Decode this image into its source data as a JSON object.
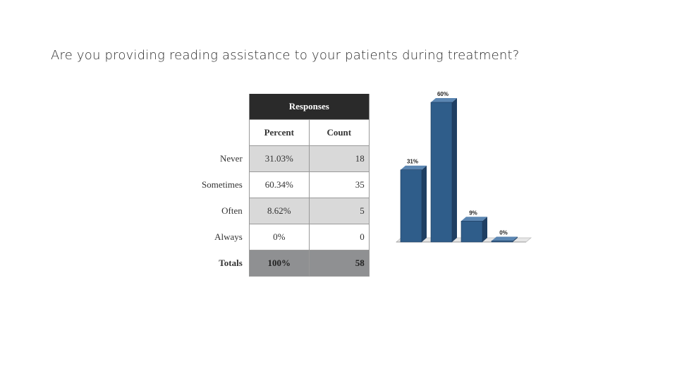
{
  "slide": {
    "title": "Are you providing reading assistance to your patients during treatment?"
  },
  "table": {
    "header": "Responses",
    "columns": [
      "Percent",
      "Count"
    ],
    "rows": [
      {
        "label": "Never",
        "percent": "31.03%",
        "count": "18"
      },
      {
        "label": "Sometimes",
        "percent": "60.34%",
        "count": "35"
      },
      {
        "label": "Often",
        "percent": "8.62%",
        "count": "5"
      },
      {
        "label": "Always",
        "percent": "0%",
        "count": "0"
      }
    ],
    "totals": {
      "label": "Totals",
      "percent": "100%",
      "count": "58"
    }
  },
  "chart_data": {
    "type": "bar",
    "categories": [
      "Never",
      "Sometimes",
      "Often",
      "Always"
    ],
    "values": [
      31,
      60,
      9,
      0
    ],
    "data_labels": [
      "31%",
      "60%",
      "9%",
      "0%"
    ],
    "ylim": [
      0,
      60
    ],
    "grid": false,
    "legend": "none",
    "bar_color": "#2f5d8a",
    "bar_side_color": "#1f3f63",
    "bar_top_color": "#5b86b2"
  }
}
